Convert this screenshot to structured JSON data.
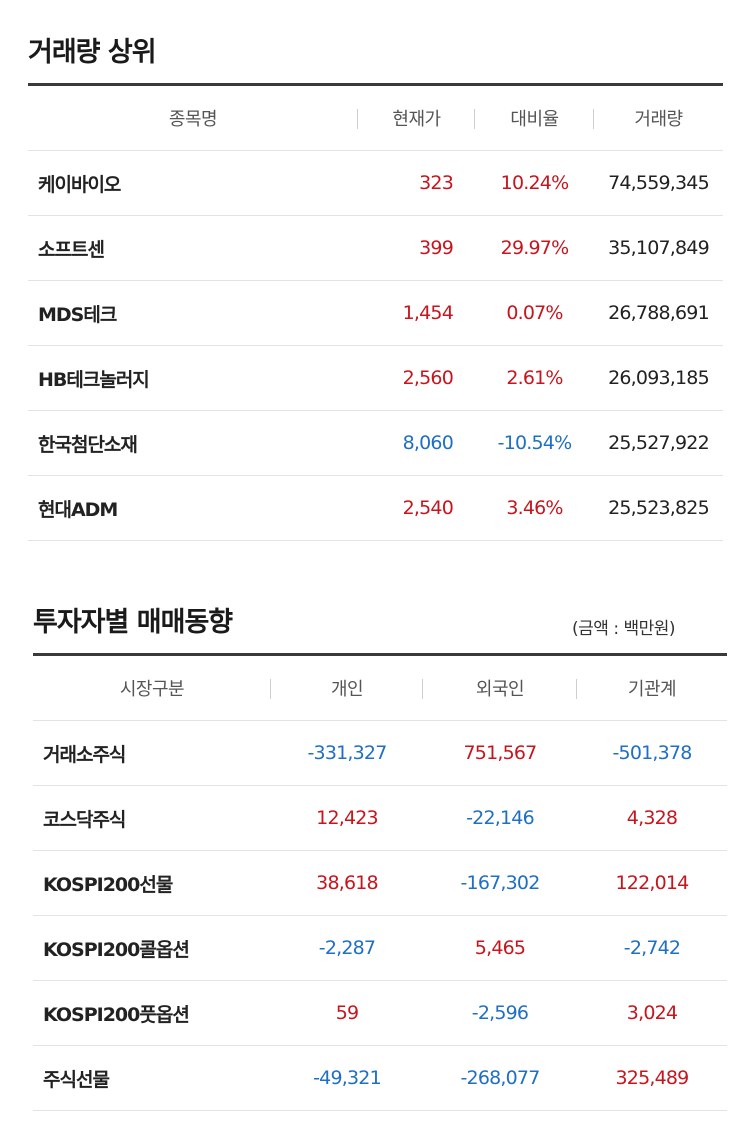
{
  "volume_top": {
    "title": "거래량 상위",
    "headers": [
      "종목명",
      "현재가",
      "대비율",
      "거래량"
    ],
    "rows": [
      {
        "name": "케이바이오",
        "price": "323",
        "rate": "10.24%",
        "volume": "74,559,345",
        "direction": "up"
      },
      {
        "name": "소프트센",
        "price": "399",
        "rate": "29.97%",
        "volume": "35,107,849",
        "direction": "up"
      },
      {
        "name": "MDS테크",
        "price": "1,454",
        "rate": "0.07%",
        "volume": "26,788,691",
        "direction": "up"
      },
      {
        "name": "HB테크놀러지",
        "price": "2,560",
        "rate": "2.61%",
        "volume": "26,093,185",
        "direction": "up"
      },
      {
        "name": "한국첨단소재",
        "price": "8,060",
        "rate": "-10.54%",
        "volume": "25,527,922",
        "direction": "down"
      },
      {
        "name": "현대ADM",
        "price": "2,540",
        "rate": "3.46%",
        "volume": "25,523,825",
        "direction": "up"
      }
    ]
  },
  "investor_trend": {
    "title": "투자자별 매매동향",
    "unit": "(금액 : 백만원)",
    "headers": [
      "시장구분",
      "개인",
      "외국인",
      "기관계"
    ],
    "rows": [
      {
        "market": "거래소주식",
        "individual": "-331,327",
        "foreign": "751,567",
        "institution": "-501,378"
      },
      {
        "market": "코스닥주식",
        "individual": "12,423",
        "foreign": "-22,146",
        "institution": "4,328"
      },
      {
        "market": "KOSPI200선물",
        "individual": "38,618",
        "foreign": "-167,302",
        "institution": "122,014"
      },
      {
        "market": "KOSPI200콜옵션",
        "individual": "-2,287",
        "foreign": "5,465",
        "institution": "-2,742"
      },
      {
        "market": "KOSPI200풋옵션",
        "individual": "59",
        "foreign": "-2,596",
        "institution": "3,024"
      },
      {
        "market": "주식선물",
        "individual": "-49,321",
        "foreign": "-268,077",
        "institution": "325,489"
      }
    ]
  },
  "colors": {
    "up": "#c8151d",
    "down": "#1f6fc4",
    "text": "#222222"
  }
}
